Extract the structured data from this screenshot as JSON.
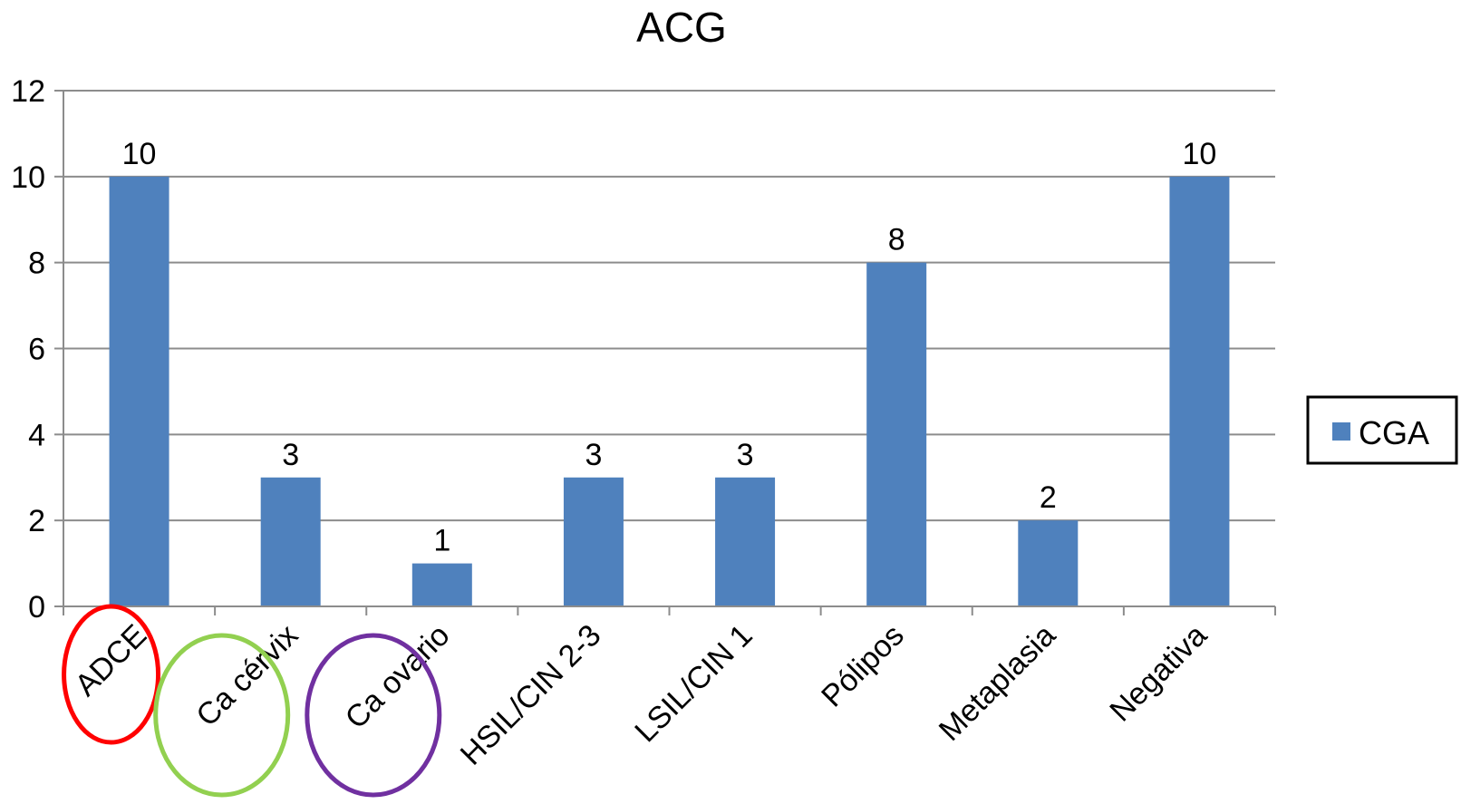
{
  "chart_data": {
    "type": "bar",
    "title": "ACG",
    "xlabel": "",
    "ylabel": "",
    "categories": [
      "ADCE",
      "Ca cérvix",
      "Ca ovario",
      "HSIL/CIN 2-3",
      "LSIL/CIN 1",
      "Pólipos",
      "Metaplasia",
      "Negativa"
    ],
    "series": [
      {
        "name": "CGA",
        "color": "#4f81bd",
        "values": [
          10,
          3,
          1,
          3,
          3,
          8,
          2,
          10
        ]
      }
    ],
    "ylim": [
      0,
      12
    ],
    "yticks": [
      "0",
      "2",
      "4",
      "6",
      "8",
      "10",
      "12"
    ],
    "grid": true,
    "legend_position": "right",
    "annotations": [
      {
        "type": "ellipse",
        "category": "ADCE",
        "color": "#ff0000"
      },
      {
        "type": "ellipse",
        "category": "Ca cérvix",
        "color": "#92d050"
      },
      {
        "type": "ellipse",
        "category": "Ca ovario",
        "color": "#7030a0"
      }
    ]
  }
}
